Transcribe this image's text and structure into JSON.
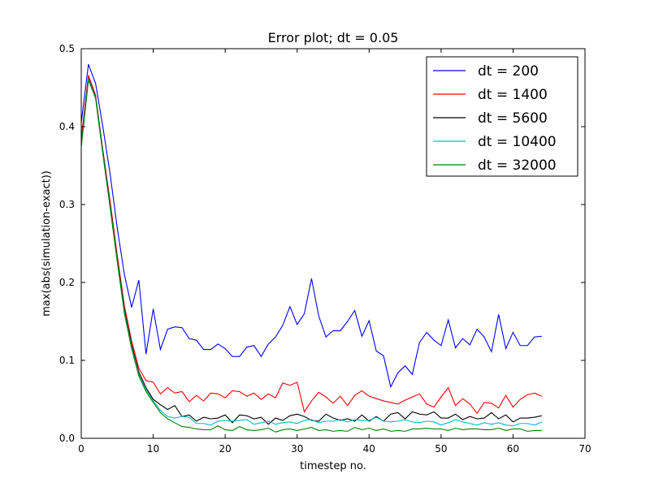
{
  "chart_data": {
    "type": "line",
    "title": "Error plot; dt = 0.05",
    "xlabel": "timestep no.",
    "ylabel": "max(abs(simulation-exact))",
    "xlim": [
      0,
      70
    ],
    "ylim": [
      0,
      0.5
    ],
    "xticks": [
      "0",
      "10",
      "20",
      "30",
      "40",
      "50",
      "60",
      "70"
    ],
    "yticks": [
      "0.0",
      "0.1",
      "0.2",
      "0.3",
      "0.4",
      "0.5"
    ],
    "grid": false,
    "legend_position": "top-right",
    "x": [
      0,
      1,
      2,
      3,
      4,
      5,
      6,
      7,
      8,
      9,
      10,
      11,
      12,
      13,
      14,
      15,
      16,
      17,
      18,
      19,
      20,
      21,
      22,
      23,
      24,
      25,
      26,
      27,
      28,
      29,
      30,
      31,
      32,
      33,
      34,
      35,
      36,
      37,
      38,
      39,
      40,
      41,
      42,
      43,
      44,
      45,
      46,
      47,
      48,
      49,
      50,
      51,
      52,
      53,
      54,
      55,
      56,
      57,
      58,
      59,
      60,
      61,
      62,
      63,
      64
    ],
    "series": [
      {
        "name": "dt = 200",
        "color": "#0000ff",
        "values": [
          0.405,
          0.48,
          0.455,
          0.4,
          0.34,
          0.27,
          0.21,
          0.168,
          0.203,
          0.108,
          0.166,
          0.114,
          0.14,
          0.143,
          0.142,
          0.128,
          0.126,
          0.114,
          0.114,
          0.121,
          0.115,
          0.105,
          0.105,
          0.117,
          0.119,
          0.105,
          0.121,
          0.13,
          0.145,
          0.169,
          0.146,
          0.16,
          0.205,
          0.157,
          0.13,
          0.138,
          0.138,
          0.15,
          0.164,
          0.131,
          0.151,
          0.112,
          0.106,
          0.066,
          0.084,
          0.093,
          0.082,
          0.123,
          0.136,
          0.126,
          0.119,
          0.152,
          0.116,
          0.128,
          0.12,
          0.14,
          0.13,
          0.111,
          0.159,
          0.115,
          0.136,
          0.119,
          0.119,
          0.13,
          0.131
        ]
      },
      {
        "name": "dt = 1400",
        "color": "#ff0000",
        "values": [
          0.385,
          0.466,
          0.44,
          0.37,
          0.305,
          0.235,
          0.17,
          0.125,
          0.09,
          0.074,
          0.072,
          0.057,
          0.065,
          0.058,
          0.06,
          0.047,
          0.055,
          0.048,
          0.058,
          0.057,
          0.052,
          0.061,
          0.06,
          0.054,
          0.058,
          0.05,
          0.057,
          0.052,
          0.071,
          0.068,
          0.072,
          0.034,
          0.048,
          0.059,
          0.053,
          0.045,
          0.054,
          0.042,
          0.055,
          0.061,
          0.054,
          0.051,
          0.048,
          0.046,
          0.044,
          0.049,
          0.053,
          0.057,
          0.044,
          0.04,
          0.053,
          0.065,
          0.042,
          0.051,
          0.044,
          0.032,
          0.046,
          0.045,
          0.039,
          0.055,
          0.04,
          0.05,
          0.056,
          0.058,
          0.054
        ]
      },
      {
        "name": "dt = 5600",
        "color": "#000000",
        "values": [
          0.378,
          0.462,
          0.438,
          0.368,
          0.3,
          0.23,
          0.165,
          0.12,
          0.085,
          0.065,
          0.05,
          0.043,
          0.037,
          0.042,
          0.028,
          0.03,
          0.022,
          0.027,
          0.025,
          0.026,
          0.03,
          0.02,
          0.03,
          0.029,
          0.025,
          0.027,
          0.018,
          0.026,
          0.023,
          0.029,
          0.031,
          0.028,
          0.023,
          0.022,
          0.031,
          0.026,
          0.023,
          0.025,
          0.022,
          0.03,
          0.022,
          0.028,
          0.022,
          0.031,
          0.033,
          0.025,
          0.034,
          0.031,
          0.03,
          0.034,
          0.026,
          0.026,
          0.031,
          0.024,
          0.028,
          0.025,
          0.026,
          0.033,
          0.025,
          0.03,
          0.021,
          0.026,
          0.026,
          0.027,
          0.029
        ]
      },
      {
        "name": "dt = 10400",
        "color": "#00bfbf",
        "values": [
          0.376,
          0.461,
          0.437,
          0.366,
          0.298,
          0.228,
          0.162,
          0.117,
          0.082,
          0.062,
          0.048,
          0.036,
          0.028,
          0.026,
          0.028,
          0.027,
          0.019,
          0.019,
          0.017,
          0.022,
          0.023,
          0.022,
          0.023,
          0.024,
          0.018,
          0.02,
          0.022,
          0.018,
          0.02,
          0.021,
          0.019,
          0.023,
          0.024,
          0.02,
          0.022,
          0.022,
          0.024,
          0.021,
          0.024,
          0.023,
          0.023,
          0.027,
          0.022,
          0.021,
          0.022,
          0.024,
          0.021,
          0.02,
          0.022,
          0.021,
          0.017,
          0.02,
          0.024,
          0.021,
          0.019,
          0.017,
          0.02,
          0.018,
          0.02,
          0.017,
          0.016,
          0.019,
          0.019,
          0.017,
          0.021
        ]
      },
      {
        "name": "dt = 32000",
        "color": "#008000",
        "values": [
          0.374,
          0.46,
          0.436,
          0.365,
          0.297,
          0.227,
          0.16,
          0.115,
          0.08,
          0.06,
          0.046,
          0.033,
          0.025,
          0.02,
          0.015,
          0.014,
          0.012,
          0.011,
          0.011,
          0.016,
          0.011,
          0.01,
          0.015,
          0.011,
          0.01,
          0.011,
          0.013,
          0.008,
          0.011,
          0.012,
          0.01,
          0.012,
          0.014,
          0.01,
          0.011,
          0.009,
          0.01,
          0.009,
          0.014,
          0.011,
          0.013,
          0.01,
          0.012,
          0.009,
          0.01,
          0.009,
          0.012,
          0.012,
          0.013,
          0.012,
          0.012,
          0.01,
          0.013,
          0.011,
          0.012,
          0.012,
          0.011,
          0.011,
          0.013,
          0.01,
          0.012,
          0.012,
          0.009,
          0.01,
          0.01
        ]
      }
    ]
  }
}
